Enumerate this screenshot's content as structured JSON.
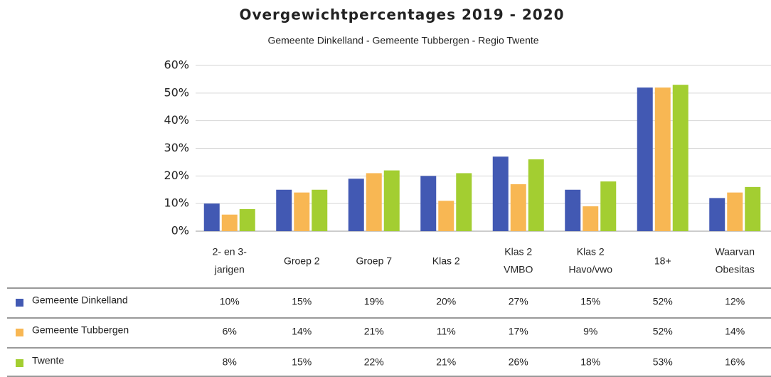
{
  "chart_data": {
    "type": "bar",
    "title": "Overgewichtpercentages 2019 - 2020",
    "subtitle": "Gemeente Dinkelland - Gemeente Tubbergen - Regio Twente",
    "categories": [
      [
        "2- en 3-",
        "jarigen"
      ],
      [
        "Groep 2"
      ],
      [
        "Groep 7"
      ],
      [
        "Klas 2"
      ],
      [
        "Klas 2",
        "VMBO"
      ],
      [
        "Klas 2",
        "Havo/vwo"
      ],
      [
        "18+"
      ],
      [
        "Waarvan",
        "Obesitas"
      ]
    ],
    "series": [
      {
        "name": "Gemeente Dinkelland",
        "color": "#4259b3",
        "values": [
          10,
          15,
          19,
          20,
          27,
          15,
          52,
          12
        ],
        "value_labels": [
          "10%",
          "15%",
          "19%",
          "20%",
          "27%",
          "15%",
          "52%",
          "12%"
        ]
      },
      {
        "name": "Gemeente Tubbergen",
        "color": "#f8b753",
        "values": [
          6,
          14,
          21,
          11,
          17,
          9,
          52,
          14
        ],
        "value_labels": [
          "6%",
          "14%",
          "21%",
          "11%",
          "17%",
          "9%",
          "52%",
          "14%"
        ]
      },
      {
        "name": "Twente",
        "color": "#a3ce31",
        "values": [
          8,
          15,
          22,
          21,
          26,
          18,
          53,
          16
        ],
        "value_labels": [
          "8%",
          "15%",
          "22%",
          "21%",
          "26%",
          "18%",
          "53%",
          "16%"
        ]
      }
    ],
    "ylim": [
      0,
      60
    ],
    "yticks": [
      {
        "value": 0,
        "label": "0%"
      },
      {
        "value": 10,
        "label": "10%"
      },
      {
        "value": 20,
        "label": "20%"
      },
      {
        "value": 30,
        "label": "30%"
      },
      {
        "value": 40,
        "label": "40%"
      },
      {
        "value": 50,
        "label": "50%"
      },
      {
        "value": 60,
        "label": "60%"
      }
    ],
    "grid": true
  }
}
